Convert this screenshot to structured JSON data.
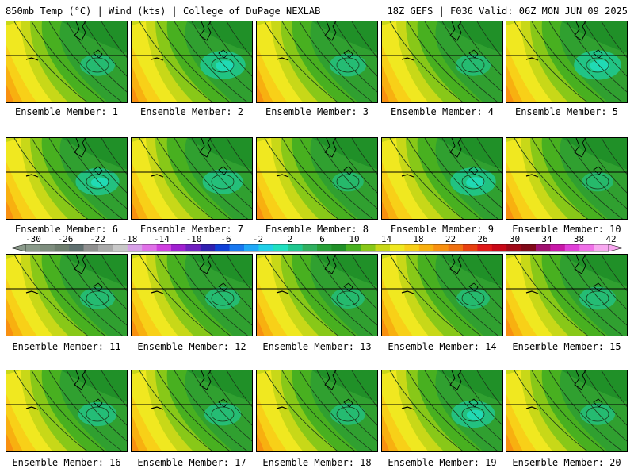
{
  "header": {
    "left": "850mb Temp (°C) | Wind (kts) | College of DuPage NEXLAB",
    "right": "18Z GEFS | F036 Valid: 06Z MON JUN 09 2025"
  },
  "members": [
    {
      "label": "Ensemble Member: 1",
      "cool": 0.55
    },
    {
      "label": "Ensemble Member: 2",
      "cool": 0.85
    },
    {
      "label": "Ensemble Member: 3",
      "cool": 0.6
    },
    {
      "label": "Ensemble Member: 4",
      "cool": 0.55
    },
    {
      "label": "Ensemble Member: 5",
      "cool": 0.9
    },
    {
      "label": "Ensemble Member: 6",
      "cool": 0.8
    },
    {
      "label": "Ensemble Member: 7",
      "cool": 0.7
    },
    {
      "label": "Ensemble Member: 8",
      "cool": 0.45
    },
    {
      "label": "Ensemble Member: 9",
      "cool": 0.85
    },
    {
      "label": "Ensemble Member: 10",
      "cool": 0.45
    },
    {
      "label": "Ensemble Member: 11",
      "cool": 0.55
    },
    {
      "label": "Ensemble Member: 12",
      "cool": 0.55
    },
    {
      "label": "Ensemble Member: 13",
      "cool": 0.5
    },
    {
      "label": "Ensemble Member: 14",
      "cool": 0.5
    },
    {
      "label": "Ensemble Member: 15",
      "cool": 0.6
    },
    {
      "label": "Ensemble Member: 16",
      "cool": 0.65
    },
    {
      "label": "Ensemble Member: 17",
      "cool": 0.6
    },
    {
      "label": "Ensemble Member: 18",
      "cool": 0.55
    },
    {
      "label": "Ensemble Member: 19",
      "cool": 0.8
    },
    {
      "label": "Ensemble Member: 20",
      "cool": 0.55
    }
  ],
  "colorbar": {
    "labels": [
      "-30",
      "-26",
      "-22",
      "-18",
      "-14",
      "-10",
      "-6",
      "-2",
      "2",
      "6",
      "10",
      "14",
      "18",
      "22",
      "26",
      "30",
      "34",
      "38",
      "42"
    ],
    "colors": [
      "#8a9a8a",
      "#7d8d7d",
      "#6e7e6e",
      "#5f6f6f",
      "#8f8f8f",
      "#aaaaaa",
      "#c8c8c8",
      "#d8a0e8",
      "#e070e8",
      "#d040e0",
      "#a020d0",
      "#7020c0",
      "#3020b0",
      "#1040d8",
      "#1878f0",
      "#20a8f8",
      "#20d0e8",
      "#20e0c0",
      "#20c890",
      "#30b060",
      "#28a038",
      "#209028",
      "#48b020",
      "#88c818",
      "#c8d818",
      "#f0e820",
      "#f8d018",
      "#f8b010",
      "#f89010",
      "#f07010",
      "#e84010",
      "#e01818",
      "#c80818",
      "#a00818",
      "#800818",
      "#a01070",
      "#c818a8",
      "#e040d8",
      "#f070e8",
      "#f8a8f0"
    ]
  }
}
